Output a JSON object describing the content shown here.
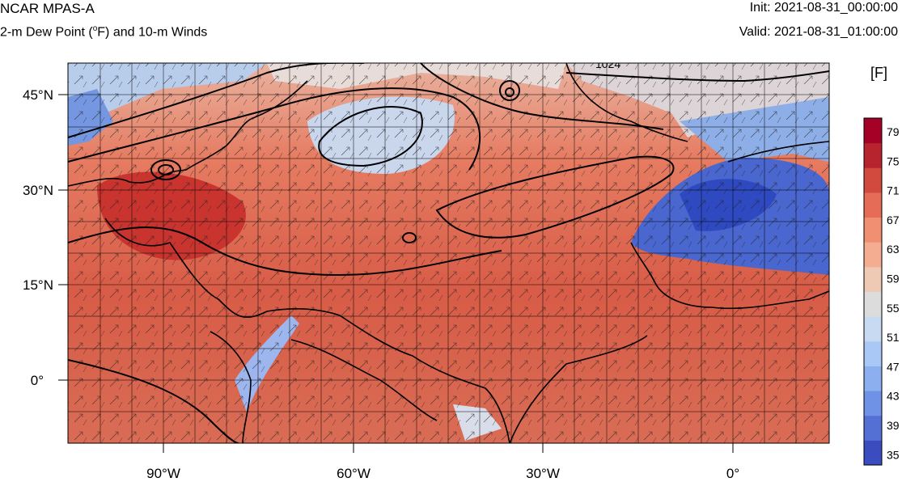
{
  "header": {
    "model": "NCAR MPAS-A",
    "field_prefix": "2-m Dew Point (",
    "field_degree": "o",
    "field_suffix": "F) and 10-m Winds",
    "init": "Init: 2021-08-31_00:00:00",
    "valid": "Valid: 2021-08-31_01:00:00"
  },
  "axes": {
    "lat_labels": [
      "45°N",
      "30°N",
      "15°N",
      "0°"
    ],
    "lon_labels": [
      "90°W",
      "60°W",
      "30°W",
      "0°"
    ]
  },
  "contour_label": "1024",
  "colorbar": {
    "unit": "[F]",
    "ticks": [
      "79",
      "75",
      "71",
      "67",
      "63",
      "59",
      "55",
      "51",
      "47",
      "43",
      "39",
      "35"
    ],
    "colors": [
      "#3b4cc0",
      "#5570d5",
      "#6f92e6",
      "#8caff0",
      "#aac8f6",
      "#c7daf2",
      "#dddcdc",
      "#eecab4",
      "#f4ad91",
      "#f08f72",
      "#e56c56",
      "#d24a3e",
      "#b8242d",
      "#a50026"
    ]
  }
}
